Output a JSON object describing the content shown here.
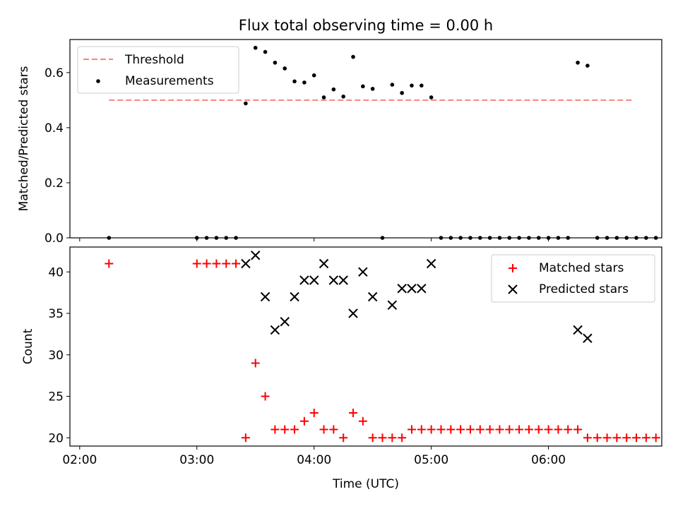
{
  "chart_data": [
    {
      "type": "scatter",
      "title": "Flux total observing time = 0.00 h",
      "xlabel": "",
      "ylabel": "Matched/Predicted stars",
      "xlim": [
        "01:55",
        "06:58"
      ],
      "ylim": [
        0,
        0.72
      ],
      "yticks": [
        0.0,
        0.2,
        0.4,
        0.6
      ],
      "ytick_labels": [
        "0.0",
        "0.2",
        "0.4",
        "0.6"
      ],
      "legend_position": "top-left",
      "threshold": {
        "name": "Threshold",
        "value": 0.5,
        "x_start": "02:15",
        "x_end": "06:43",
        "color": "#ff7f7f",
        "style": "dashed"
      },
      "series": [
        {
          "name": "Measurements",
          "color": "#000000",
          "points": [
            [
              "02:15",
              0.0
            ],
            [
              "03:00",
              0.0
            ],
            [
              "03:05",
              0.0
            ],
            [
              "03:10",
              0.0
            ],
            [
              "03:15",
              0.0
            ],
            [
              "03:20",
              0.0
            ],
            [
              "03:25",
              0.488
            ],
            [
              "03:30",
              0.69
            ],
            [
              "03:35",
              0.675
            ],
            [
              "03:40",
              0.636
            ],
            [
              "03:45",
              0.615
            ],
            [
              "03:50",
              0.568
            ],
            [
              "03:55",
              0.564
            ],
            [
              "04:00",
              0.59
            ],
            [
              "04:05",
              0.51
            ],
            [
              "04:10",
              0.539
            ],
            [
              "04:15",
              0.513
            ],
            [
              "04:20",
              0.657
            ],
            [
              "04:25",
              0.55
            ],
            [
              "04:30",
              0.541
            ],
            [
              "04:35",
              0.0
            ],
            [
              "04:40",
              0.556
            ],
            [
              "04:45",
              0.526
            ],
            [
              "04:50",
              0.553
            ],
            [
              "04:55",
              0.553
            ],
            [
              "05:00",
              0.51
            ],
            [
              "05:05",
              0.0
            ],
            [
              "05:10",
              0.0
            ],
            [
              "05:15",
              0.0
            ],
            [
              "05:20",
              0.0
            ],
            [
              "05:25",
              0.0
            ],
            [
              "05:30",
              0.0
            ],
            [
              "05:35",
              0.0
            ],
            [
              "05:40",
              0.0
            ],
            [
              "05:45",
              0.0
            ],
            [
              "05:50",
              0.0
            ],
            [
              "05:55",
              0.0
            ],
            [
              "06:00",
              0.0
            ],
            [
              "06:05",
              0.0
            ],
            [
              "06:10",
              0.0
            ],
            [
              "06:15",
              0.636
            ],
            [
              "06:20",
              0.625
            ],
            [
              "06:25",
              0.0
            ],
            [
              "06:30",
              0.0
            ],
            [
              "06:35",
              0.0
            ],
            [
              "06:40",
              0.0
            ],
            [
              "06:45",
              0.0
            ],
            [
              "06:50",
              0.0
            ],
            [
              "06:55",
              0.0
            ]
          ]
        }
      ]
    },
    {
      "type": "scatter",
      "title": "",
      "xlabel": "Time (UTC)",
      "ylabel": "Count",
      "xlim": [
        "01:55",
        "06:58"
      ],
      "ylim": [
        19,
        43
      ],
      "yticks": [
        20,
        25,
        30,
        35,
        40
      ],
      "ytick_labels": [
        "20",
        "25",
        "30",
        "35",
        "40"
      ],
      "xticks": [
        "02:00",
        "03:00",
        "04:00",
        "05:00",
        "06:00"
      ],
      "xtick_labels": [
        "02:00",
        "03:00",
        "04:00",
        "05:00",
        "06:00"
      ],
      "legend_position": "top-right",
      "series": [
        {
          "name": "Matched stars",
          "color": "#ff0000",
          "marker": "plus",
          "points": [
            [
              "02:15",
              41
            ],
            [
              "03:00",
              41
            ],
            [
              "03:05",
              41
            ],
            [
              "03:10",
              41
            ],
            [
              "03:15",
              41
            ],
            [
              "03:20",
              41
            ],
            [
              "03:25",
              20
            ],
            [
              "03:30",
              29
            ],
            [
              "03:35",
              25
            ],
            [
              "03:40",
              21
            ],
            [
              "03:45",
              21
            ],
            [
              "03:50",
              21
            ],
            [
              "03:55",
              22
            ],
            [
              "04:00",
              23
            ],
            [
              "04:05",
              21
            ],
            [
              "04:10",
              21
            ],
            [
              "04:15",
              20
            ],
            [
              "04:20",
              23
            ],
            [
              "04:25",
              22
            ],
            [
              "04:30",
              20
            ],
            [
              "04:35",
              20
            ],
            [
              "04:40",
              20
            ],
            [
              "04:45",
              20
            ],
            [
              "04:50",
              21
            ],
            [
              "04:55",
              21
            ],
            [
              "05:00",
              21
            ],
            [
              "05:05",
              21
            ],
            [
              "05:10",
              21
            ],
            [
              "05:15",
              21
            ],
            [
              "05:20",
              21
            ],
            [
              "05:25",
              21
            ],
            [
              "05:30",
              21
            ],
            [
              "05:35",
              21
            ],
            [
              "05:40",
              21
            ],
            [
              "05:45",
              21
            ],
            [
              "05:50",
              21
            ],
            [
              "05:55",
              21
            ],
            [
              "06:00",
              21
            ],
            [
              "06:05",
              21
            ],
            [
              "06:10",
              21
            ],
            [
              "06:15",
              21
            ],
            [
              "06:20",
              20
            ],
            [
              "06:25",
              20
            ],
            [
              "06:30",
              20
            ],
            [
              "06:35",
              20
            ],
            [
              "06:40",
              20
            ],
            [
              "06:45",
              20
            ],
            [
              "06:50",
              20
            ],
            [
              "06:55",
              20
            ]
          ]
        },
        {
          "name": "Predicted stars",
          "color": "#000000",
          "marker": "x",
          "points": [
            [
              "03:25",
              41
            ],
            [
              "03:30",
              42
            ],
            [
              "03:35",
              37
            ],
            [
              "03:40",
              33
            ],
            [
              "03:45",
              34
            ],
            [
              "03:50",
              37
            ],
            [
              "03:55",
              39
            ],
            [
              "04:00",
              39
            ],
            [
              "04:05",
              41
            ],
            [
              "04:10",
              39
            ],
            [
              "04:15",
              39
            ],
            [
              "04:20",
              35
            ],
            [
              "04:25",
              40
            ],
            [
              "04:30",
              37
            ],
            [
              "04:40",
              36
            ],
            [
              "04:45",
              38
            ],
            [
              "04:50",
              38
            ],
            [
              "04:55",
              38
            ],
            [
              "05:00",
              41
            ],
            [
              "06:15",
              33
            ],
            [
              "06:20",
              32
            ]
          ]
        }
      ]
    }
  ]
}
